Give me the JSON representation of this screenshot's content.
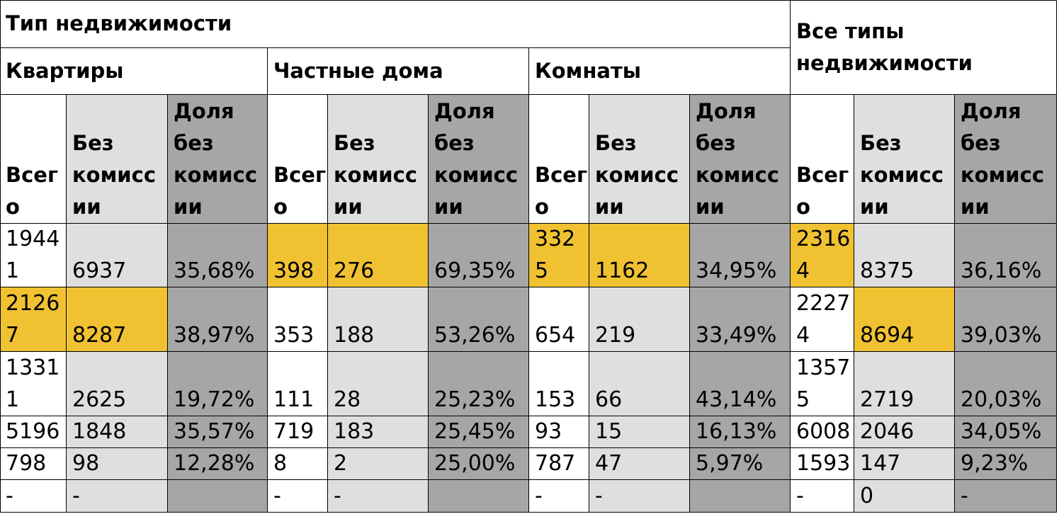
{
  "header": {
    "property_type": "Тип недвижимости",
    "all_types": "Все типы\nнедвижимости",
    "groups": [
      "Квартиры",
      "Частные дома",
      "Комнаты"
    ],
    "col_total": "Всег\nо",
    "col_no_commission": "Без\nкомисс\nии",
    "col_share": "Доля\nбез\nкомисс\nии"
  },
  "rows": [
    {
      "cells": [
        "1944\n1",
        "6937",
        "35,68%",
        "398",
        "276",
        "69,35%",
        "332\n5",
        "1162",
        "34,95%",
        "2316\n4",
        "8375",
        "36,16%"
      ]
    },
    {
      "cells": [
        "2126\n7",
        "8287",
        "38,97%",
        "353",
        "188",
        "53,26%",
        "654",
        "219",
        "33,49%",
        "2227\n4",
        "8694",
        "39,03%"
      ]
    },
    {
      "cells": [
        "1331\n1",
        "2625",
        "19,72%",
        "111",
        "28",
        "25,23%",
        "153",
        "66",
        "43,14%",
        "1357\n5",
        "2719",
        "20,03%"
      ]
    },
    {
      "cells": [
        "5196",
        "1848",
        "35,57%",
        "719",
        "183",
        "25,45%",
        "93",
        "15",
        "16,13%",
        "6008",
        "2046",
        "34,05%"
      ]
    },
    {
      "cells": [
        "798",
        "98",
        "12,28%",
        "8",
        "2",
        "25,00%",
        "787",
        "47",
        "5,97%",
        "1593",
        "147",
        "9,23%"
      ]
    },
    {
      "cells": [
        "-",
        "-",
        "",
        "-",
        "-",
        "",
        "-",
        "-",
        "",
        "-",
        "0",
        "-"
      ]
    }
  ],
  "colors": {
    "white": "#ffffff",
    "light_gray": "#dfdfdf",
    "dark_gray": "#a6a6a6",
    "highlight": "#f0c232",
    "border": "#000000"
  },
  "highlighted_cells": [
    [
      0,
      3
    ],
    [
      0,
      4
    ],
    [
      0,
      6
    ],
    [
      0,
      7
    ],
    [
      0,
      9
    ],
    [
      1,
      0
    ],
    [
      1,
      1
    ],
    [
      1,
      10
    ]
  ]
}
